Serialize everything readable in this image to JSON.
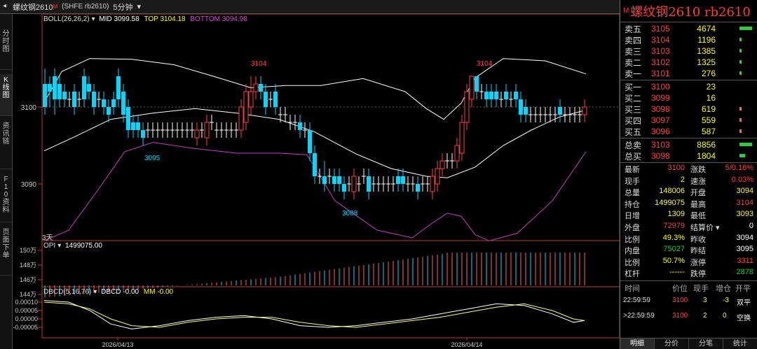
{
  "titlebar": {
    "name": "螺纹钢2610",
    "flag": "M",
    "code": "(SHFE rb2610)",
    "period": "5分钟",
    "dropdown_glyph": "▾"
  },
  "left_tabs": [
    {
      "label": "分时图",
      "active": false
    },
    {
      "label": "K线图",
      "active": true
    },
    {
      "label": "资讯链",
      "active": false
    },
    {
      "label": "F10资料",
      "active": false
    },
    {
      "label": "页面下单",
      "active": false
    }
  ],
  "indicators": {
    "boll": "BOLL(26,26,2)",
    "boll_mid": "MID 3099.58",
    "boll_top": "TOP 3104.18",
    "boll_bottom": "BOTTOM 3094.98",
    "opi_label": "OPI",
    "opi_value": "1499075.00",
    "dbcd": "DBCD(5,16,76)",
    "dbcd_value": "DBCD -0.00",
    "mm_value": "MM -0.00",
    "days_label": "3天"
  },
  "axis": {
    "price_ticks": [
      "3100",
      "3090"
    ],
    "opi_ticks": [
      "150万",
      "148万",
      "146万",
      "144万"
    ],
    "dbcd_ticks": [
      "0.00010",
      "0.00005",
      "0.00000",
      "-0.00005"
    ],
    "dates": [
      "2026/04/13",
      "2026/04/14"
    ],
    "annotations": [
      "3104",
      "3095",
      "3104",
      "3088"
    ]
  },
  "panel": {
    "title_badge": "M",
    "title": "螺纹钢2610 rb2610",
    "asks": [
      {
        "label": "卖五",
        "price": "3105",
        "vol": "4674",
        "bar": 1.0
      },
      {
        "label": "卖四",
        "price": "3104",
        "vol": "1196",
        "bar": 0.26
      },
      {
        "label": "卖三",
        "price": "3103",
        "vol": "1385",
        "bar": 0.3
      },
      {
        "label": "卖二",
        "price": "3102",
        "vol": "1325",
        "bar": 0.28
      },
      {
        "label": "卖一",
        "price": "3101",
        "vol": "276",
        "bar": 0.06
      }
    ],
    "bids": [
      {
        "label": "买一",
        "price": "3100",
        "vol": "23",
        "bar": 0.0
      },
      {
        "label": "买二",
        "price": "3099",
        "vol": "16",
        "bar": 0.0
      },
      {
        "label": "买三",
        "price": "3098",
        "vol": "619",
        "bar": 0.13
      },
      {
        "label": "买四",
        "price": "3097",
        "vol": "559",
        "bar": 0.12
      },
      {
        "label": "买五",
        "price": "3096",
        "vol": "587",
        "bar": 0.13
      }
    ],
    "totals": [
      {
        "label": "总卖",
        "price": "3103",
        "vol": "8856",
        "bar": 1.0
      },
      {
        "label": "总买",
        "price": "3098",
        "vol": "1804",
        "bar": 0.2
      }
    ],
    "quote": [
      {
        "l1": "最新",
        "v1": "3100",
        "c1": "#ff4040",
        "l2": "涨跌",
        "v2": "5/0.16%",
        "c2": "#ff4040"
      },
      {
        "l1": "现手",
        "v1": "2",
        "c1": "#ffff00",
        "l2": "速涨",
        "v2": "0.03%",
        "c2": "#ff4040"
      },
      {
        "l1": "总量",
        "v1": "148006",
        "c1": "#ffff00",
        "l2": "开盘",
        "v2": "3094",
        "c2": "#ffff00"
      },
      {
        "l1": "持仓",
        "v1": "1499075",
        "c1": "#ffff00",
        "l2": "最高",
        "v2": "3104",
        "c2": "#ff4040"
      },
      {
        "l1": "日增",
        "v1": "1309",
        "c1": "#ffff00",
        "l2": "最低",
        "v2": "3093",
        "c2": "#ffff00"
      },
      {
        "l1": "外盘",
        "v1": "72979",
        "c1": "#ff4040",
        "l2": "结算价 ▾",
        "v2": "0",
        "c2": "#ffffff"
      },
      {
        "l1": "比例",
        "v1": "49.3%",
        "c1": "#ffff00",
        "l2": "昨收",
        "v2": "3094",
        "c2": "#ffffff"
      },
      {
        "l1": "内盘",
        "v1": "75027",
        "c1": "#00e000",
        "l2": "昨结",
        "v2": "3095",
        "c2": "#ffffff"
      },
      {
        "l1": "比例",
        "v1": "50.7%",
        "c1": "#ffff00",
        "l2": "涨停",
        "v2": "3311",
        "c2": "#ff4040"
      },
      {
        "l1": "杠杆",
        "v1": "------",
        "c1": "#ffff00",
        "l2": "跌停",
        "v2": "2878",
        "c2": "#00e000"
      }
    ],
    "ticks_head": [
      "时间",
      "价位",
      "现手",
      "增仓",
      "开平"
    ],
    "ticks": [
      {
        "time": "22:59:59",
        "price": "3100",
        "vol": "3",
        "oi": "-3",
        "type": "双平"
      },
      {
        "time": ">22:59:59",
        "price": "3100",
        "vol": "2",
        "oi": "0",
        "type": "空换"
      }
    ],
    "bottom_tabs": [
      "明细",
      "分价",
      "分笔",
      "统计"
    ]
  },
  "colors": {
    "up": "#ff4040",
    "down": "#00d8ff",
    "boll_mid": "#ffffff",
    "boll_top": "#ffffff",
    "boll_bottom": "#c040c0",
    "flat": "#ffffff"
  }
}
